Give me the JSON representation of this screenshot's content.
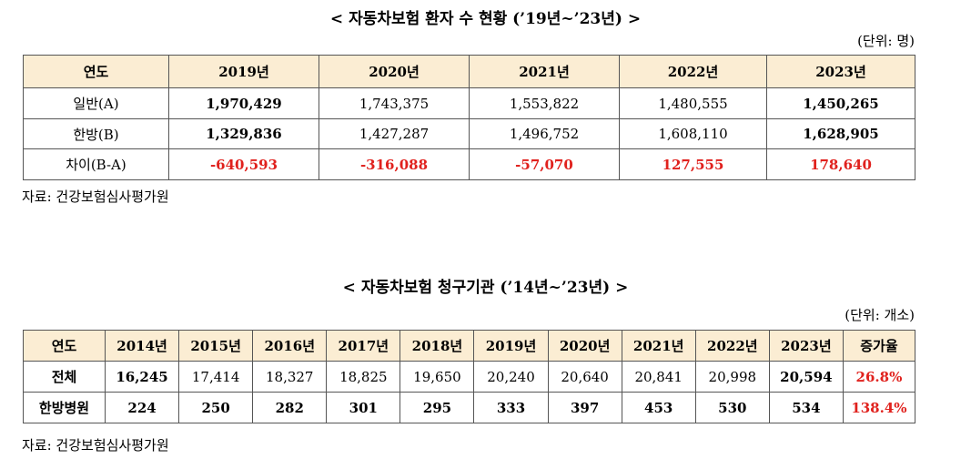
{
  "tables": [
    {
      "title": "< 자동차보험 환자 수 현황 (’19년~’23년) >",
      "unit": "(단위: 명)",
      "header": [
        "연도",
        "2019년",
        "2020년",
        "2021년",
        "2022년",
        "2023년"
      ],
      "rows": [
        [
          "일반(A)",
          "1,970,429",
          "1,743,375",
          "1,553,822",
          "1,480,555",
          "1,450,265"
        ],
        [
          "한방(B)",
          "1,329,836",
          "1,427,287",
          "1,496,752",
          "1,608,110",
          "1,628,905"
        ],
        [
          "차이(B-A)",
          "-640,593",
          "-316,088",
          "-57,070",
          "127,555",
          "178,640"
        ]
      ],
      "source": "자료: 건강보험심사평가원"
    },
    {
      "title": "< 자동차보험 청구기관 (’14년~’23년) >",
      "unit": "(단위: 개소)",
      "header": [
        "연도",
        "2014년",
        "2015년",
        "2016년",
        "2017년",
        "2018년",
        "2019년",
        "2020년",
        "2021년",
        "2022년",
        "2023년",
        "증가율"
      ],
      "rows": [
        [
          "전체",
          "16,245",
          "17,414",
          "18,327",
          "18,825",
          "19,650",
          "20,240",
          "20,640",
          "20,841",
          "20,998",
          "20,594",
          "26.8%"
        ],
        [
          "한방병원",
          "224",
          "250",
          "282",
          "301",
          "295",
          "333",
          "397",
          "453",
          "530",
          "534",
          "138.4%"
        ]
      ],
      "source": "자료: 건강보험심사평가원"
    }
  ]
}
